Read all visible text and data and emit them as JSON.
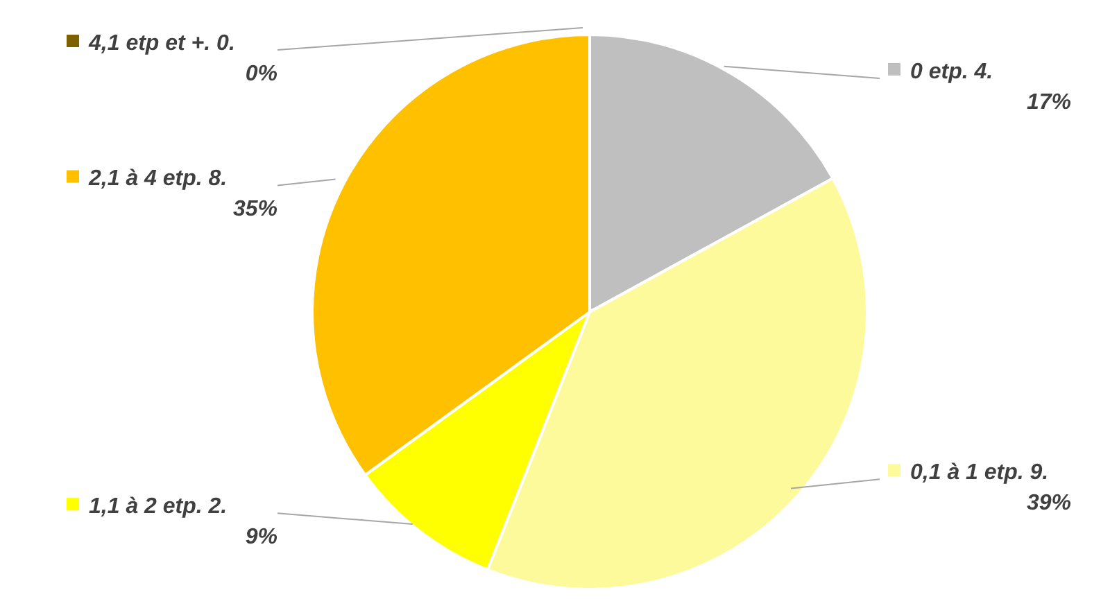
{
  "chart_data": {
    "type": "pie",
    "categories": [
      "0 etp. 4.",
      "0,1 à 1 etp. 9.",
      "1,1 à 2 etp. 2.",
      "2,1 à 4 etp. 8.",
      "4,1 etp et +. 0."
    ],
    "values": [
      17,
      39,
      9,
      35,
      0
    ],
    "colors": [
      "#bfbfbf",
      "#fdfa9c",
      "#ffff00",
      "#ffc000",
      "#7f6000"
    ],
    "legend": "left",
    "value_labels": [
      "17%",
      "39%",
      "9%",
      "35%",
      "0%"
    ]
  }
}
